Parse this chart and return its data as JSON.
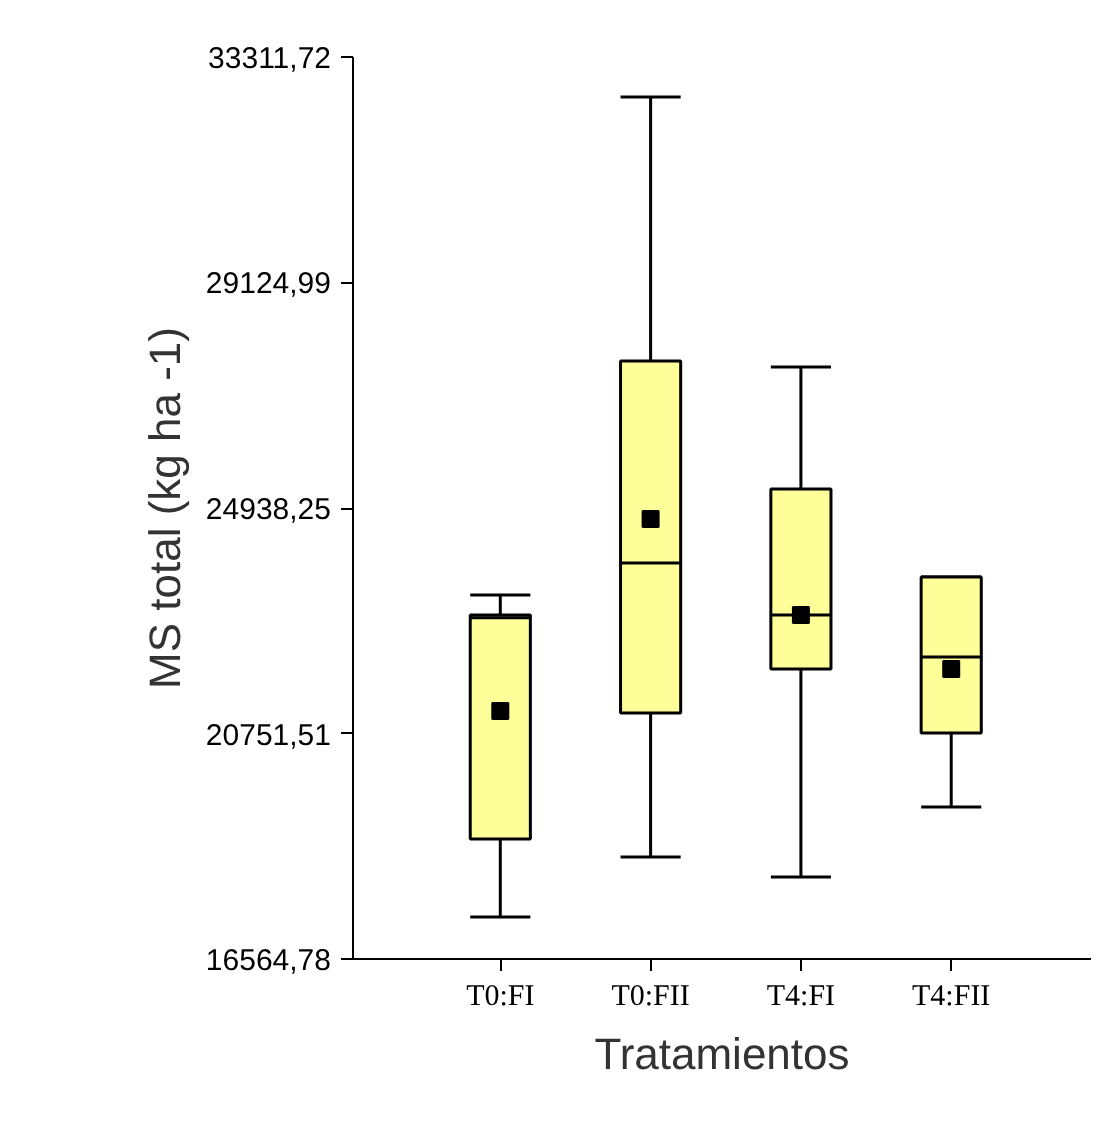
{
  "chart_data": {
    "type": "box",
    "xlabel": "Tratamientos",
    "ylabel": "MS total (kg ha -1)",
    "categories": [
      "T0:FI",
      "T0:FII",
      "T4:FI",
      "T4:FII"
    ],
    "color": "#ffff99",
    "marker": "square",
    "boxes": [
      {
        "low": 17345,
        "q1": 18793,
        "median": 22900,
        "q3": 22951,
        "high": 23323,
        "mean": 21169
      },
      {
        "low": 18458,
        "q1": 21132,
        "median": 23917,
        "q3": 27667,
        "high": 32569,
        "mean": 24734
      },
      {
        "low": 18087,
        "q1": 21949,
        "median": 22951,
        "q3": 25291,
        "high": 27556,
        "mean": 22951
      },
      {
        "low": 19387,
        "q1": 20760,
        "median": 22172,
        "q3": 23657,
        "high": 23657,
        "mean": 21949
      }
    ],
    "ylim": [
      16564.78,
      33311.72
    ],
    "yticks": [
      {
        "value": 16564.78,
        "label": "16564,78"
      },
      {
        "value": 20751.51,
        "label": "20751,51"
      },
      {
        "value": 24938.25,
        "label": "24938,25"
      },
      {
        "value": 29124.99,
        "label": "29124,99"
      },
      {
        "value": 33311.72,
        "label": "33311,72"
      }
    ]
  }
}
